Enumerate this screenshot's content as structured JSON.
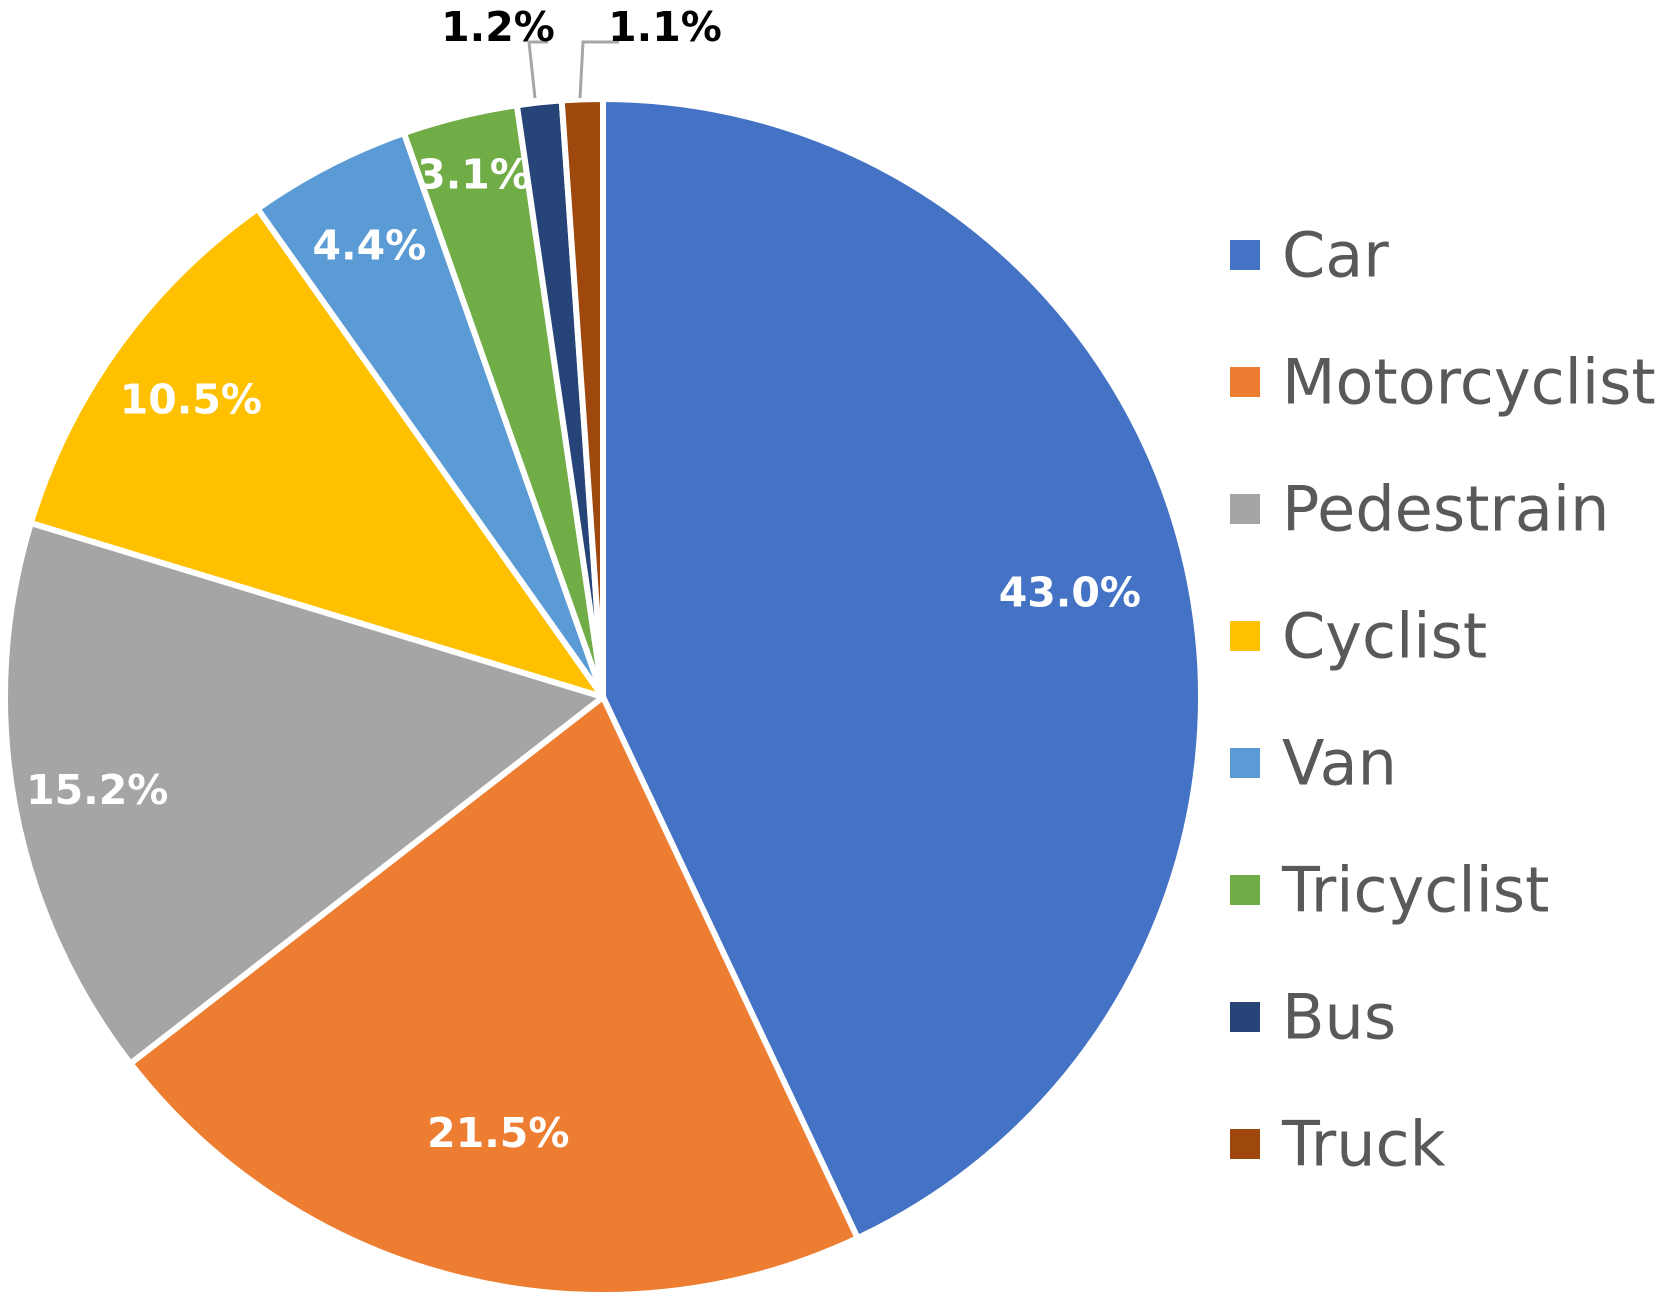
{
  "chart_data": {
    "type": "pie",
    "categories": [
      "Car",
      "Motorcyclist",
      "Pedestrain",
      "Cyclist",
      "Van",
      "Tricyclist",
      "Bus",
      "Truck"
    ],
    "values": [
      43.0,
      21.5,
      15.2,
      10.5,
      4.4,
      3.1,
      1.2,
      1.1
    ],
    "labels": [
      "43.0%",
      "21.5%",
      "15.2%",
      "10.5%",
      "4.4%",
      "3.1%",
      "1.2%",
      "1.1%"
    ],
    "unit": "%",
    "colors": [
      "#4472C4",
      "#ED7D31",
      "#A5A5A5",
      "#FFC000",
      "#5B9BD5",
      "#70AD47",
      "#264478",
      "#9E480E"
    ],
    "label_colors": [
      "#ffffff",
      "#ffffff",
      "#ffffff",
      "#ffffff",
      "#ffffff",
      "#ffffff",
      "#000000",
      "#000000"
    ],
    "start_angle_deg": 0,
    "direction": "clockwise",
    "legend": {
      "placement": "right",
      "entries": [
        "Car",
        "Motorcyclist",
        "Pedestrain",
        "Cyclist",
        "Van",
        "Tricyclist",
        "Bus",
        "Truck"
      ]
    }
  }
}
